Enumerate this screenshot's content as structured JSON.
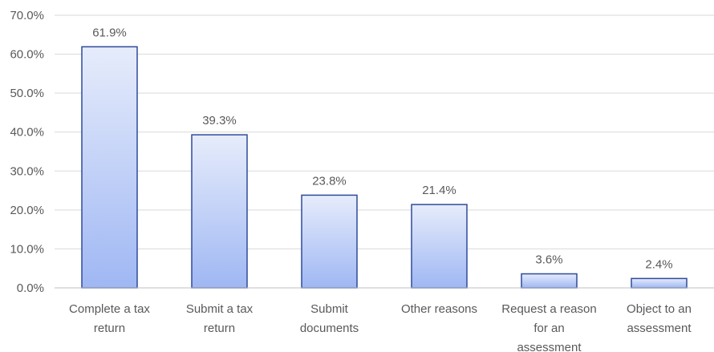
{
  "chart_data": {
    "type": "bar",
    "title": "",
    "xlabel": "",
    "ylabel": "",
    "categories": [
      [
        "Complete a tax",
        "return"
      ],
      [
        "Submit a tax",
        "return"
      ],
      [
        "Submit",
        "documents"
      ],
      [
        "Other reasons"
      ],
      [
        "Request a reason",
        "for an",
        "assessment"
      ],
      [
        "Object to an",
        "assessment"
      ]
    ],
    "values": [
      61.9,
      39.3,
      23.8,
      21.4,
      3.6,
      2.4
    ],
    "data_labels": [
      "61.9%",
      "39.3%",
      "23.8%",
      "21.4%",
      "3.6%",
      "2.4%"
    ],
    "ylim": [
      0,
      70
    ],
    "yticks": [
      0,
      10,
      20,
      30,
      40,
      50,
      60,
      70
    ],
    "ytick_labels": [
      "0.0%",
      "10.0%",
      "20.0%",
      "30.0%",
      "40.0%",
      "50.0%",
      "60.0%",
      "70.0%"
    ],
    "grid": true,
    "legend": "none",
    "colors": {
      "bar_top": "#e6ecfb",
      "bar_bottom": "#9fb7f3",
      "bar_border": "#2f4a9a",
      "grid": "#d9d9d9",
      "text": "#595959"
    }
  }
}
